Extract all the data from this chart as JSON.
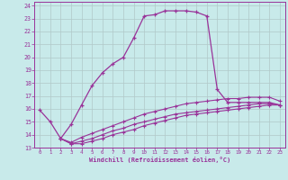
{
  "xlabel": "Windchill (Refroidissement éolien,°C)",
  "background_color": "#c8eaea",
  "grid_color": "#b0c8c8",
  "line_color": "#993399",
  "xlim": [
    -0.5,
    23.5
  ],
  "ylim": [
    13.0,
    24.3
  ],
  "xticks": [
    0,
    1,
    2,
    3,
    4,
    5,
    6,
    7,
    8,
    9,
    10,
    11,
    12,
    13,
    14,
    15,
    16,
    17,
    18,
    19,
    20,
    21,
    22,
    23
  ],
  "yticks": [
    13,
    14,
    15,
    16,
    17,
    18,
    19,
    20,
    21,
    22,
    23,
    24
  ],
  "series1_x": [
    0,
    1,
    2,
    3,
    4,
    5,
    6,
    7,
    8,
    9,
    10,
    11,
    12,
    13,
    14,
    15,
    16,
    17,
    18,
    19,
    20,
    21,
    22,
    23
  ],
  "series1_y": [
    15.9,
    15.0,
    13.7,
    14.8,
    16.3,
    17.8,
    18.8,
    19.5,
    20.0,
    21.5,
    23.2,
    23.3,
    23.6,
    23.6,
    23.6,
    23.5,
    23.2,
    17.5,
    16.5,
    16.5,
    16.5,
    16.5,
    16.5,
    16.3
  ],
  "series2_x": [
    2,
    3,
    4,
    5,
    6,
    7,
    8,
    9,
    10,
    11,
    12,
    13,
    14,
    15,
    16,
    17,
    18,
    19,
    20,
    21,
    22,
    23
  ],
  "series2_y": [
    13.7,
    13.4,
    13.8,
    14.1,
    14.4,
    14.7,
    15.0,
    15.3,
    15.6,
    15.8,
    16.0,
    16.2,
    16.4,
    16.5,
    16.6,
    16.7,
    16.8,
    16.8,
    16.9,
    16.9,
    16.9,
    16.6
  ],
  "series3_x": [
    2,
    3,
    4,
    5,
    6,
    7,
    8,
    9,
    10,
    11,
    12,
    13,
    14,
    15,
    16,
    17,
    18,
    19,
    20,
    21,
    22,
    23
  ],
  "series3_y": [
    13.7,
    13.3,
    13.5,
    13.7,
    14.0,
    14.3,
    14.5,
    14.8,
    15.0,
    15.2,
    15.4,
    15.6,
    15.7,
    15.8,
    15.9,
    16.0,
    16.1,
    16.2,
    16.3,
    16.4,
    16.4,
    16.3
  ],
  "series4_x": [
    2,
    3,
    4,
    5,
    6,
    7,
    8,
    9,
    10,
    11,
    12,
    13,
    14,
    15,
    16,
    17,
    18,
    19,
    20,
    21,
    22,
    23
  ],
  "series4_y": [
    13.7,
    13.3,
    13.3,
    13.5,
    13.7,
    14.0,
    14.2,
    14.4,
    14.7,
    14.9,
    15.1,
    15.3,
    15.5,
    15.6,
    15.7,
    15.8,
    15.9,
    16.0,
    16.1,
    16.2,
    16.3,
    16.3
  ]
}
